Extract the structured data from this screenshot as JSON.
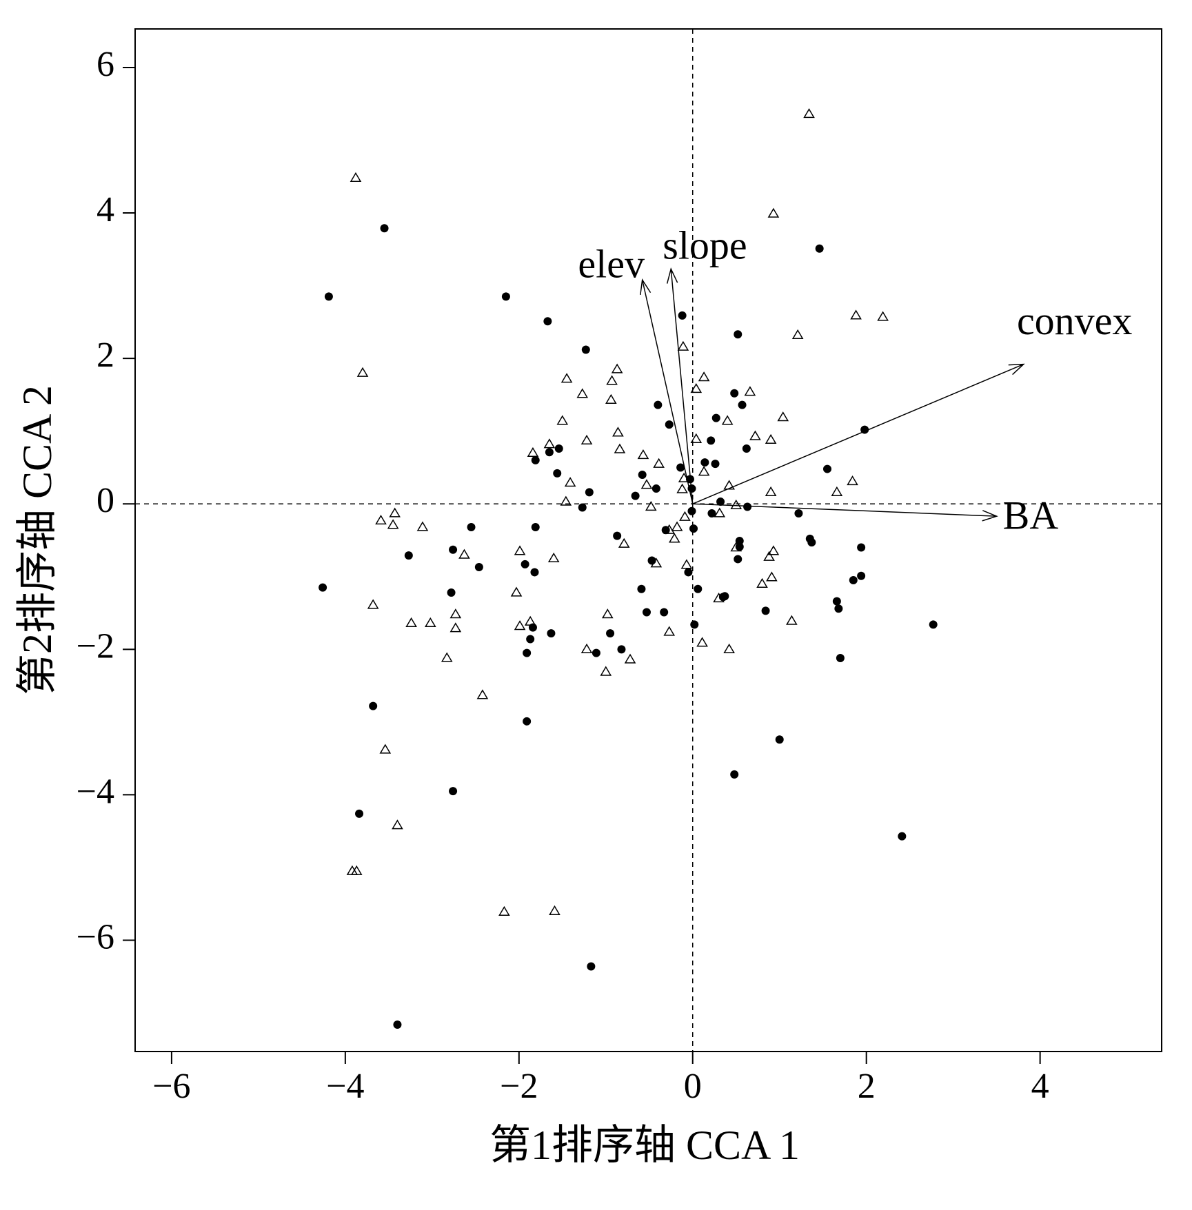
{
  "chart_data": {
    "type": "scatter",
    "xlabel": "第1排序轴 CCA 1",
    "ylabel": "第2排序轴 CCA 2",
    "xlim": [
      -6.42,
      5.4
    ],
    "ylim": [
      -7.53,
      6.53
    ],
    "xticks": [
      {
        "value": -6,
        "label": "−6"
      },
      {
        "value": -4,
        "label": "−4"
      },
      {
        "value": -2,
        "label": "−2"
      },
      0,
      2,
      4
    ],
    "yticks": [
      {
        "value": -6,
        "label": "−6"
      },
      {
        "value": -4,
        "label": "−4"
      },
      {
        "value": -2,
        "label": "−2"
      },
      0,
      2,
      4,
      6
    ],
    "series": [
      {
        "marker": "circle",
        "color": "#000000",
        "x": [
          -3.55,
          -4.19,
          -2.15,
          -1.67,
          -1.23,
          1.46,
          -0.12,
          0.52,
          0.48,
          0.57,
          -0.4,
          -0.27,
          0.27,
          0.21,
          0.62,
          1.98,
          -1.81,
          -1.65,
          -1.54,
          -1.56,
          -0.58,
          -0.14,
          0.14,
          0.26,
          -0.03,
          -0.01,
          -0.42,
          -1.19,
          -0.66,
          -1.27,
          0.32,
          0.22,
          -0.01,
          0.63,
          1.55,
          1.22,
          -2.55,
          -1.81,
          0.01,
          -0.31,
          -3.27,
          -2.76,
          -2.46,
          -1.93,
          -1.82,
          -0.87,
          -0.47,
          0.54,
          0.54,
          0.52,
          1.35,
          1.37,
          1.94,
          -0.05,
          -4.26,
          -2.78,
          -0.59,
          0.06,
          0.37,
          0.35,
          1.85,
          1.94,
          1.66,
          1.68,
          -0.53,
          -0.33,
          0.84,
          2.77,
          0.02,
          -1.84,
          -1.63,
          -1.87,
          -0.95,
          -0.82,
          -1.11,
          -1.91,
          1.7,
          -3.68,
          -1.91,
          1.0,
          -2.76,
          0.48,
          -3.84,
          2.41,
          -1.17,
          -3.4
        ],
        "y": [
          3.79,
          2.85,
          2.85,
          2.51,
          2.12,
          3.51,
          2.59,
          2.33,
          1.52,
          1.36,
          1.36,
          1.09,
          1.18,
          0.87,
          0.76,
          1.02,
          0.6,
          0.71,
          0.76,
          0.42,
          0.4,
          0.5,
          0.57,
          0.55,
          0.34,
          0.21,
          0.21,
          0.16,
          0.11,
          -0.05,
          0.03,
          -0.13,
          -0.1,
          -0.04,
          0.48,
          -0.13,
          -0.32,
          -0.32,
          -0.34,
          -0.36,
          -0.71,
          -0.63,
          -0.87,
          -0.83,
          -0.94,
          -0.44,
          -0.78,
          -0.51,
          -0.59,
          -0.76,
          -0.48,
          -0.53,
          -0.6,
          -0.94,
          -1.15,
          -1.22,
          -1.17,
          -1.17,
          -1.27,
          -1.28,
          -1.05,
          -0.99,
          -1.34,
          -1.44,
          -1.49,
          -1.49,
          -1.47,
          -1.66,
          -1.66,
          -1.7,
          -1.78,
          -1.86,
          -1.78,
          -2.0,
          -2.05,
          -2.05,
          -2.12,
          -2.78,
          -2.99,
          -3.24,
          -3.95,
          -3.72,
          -4.26,
          -4.57,
          -6.36,
          -7.16
        ]
      },
      {
        "marker": "triangle",
        "color": "#000000",
        "x": [
          1.34,
          -3.88,
          0.93,
          -3.8,
          1.88,
          2.19,
          1.21,
          -0.11,
          -0.87,
          -1.45,
          -0.93,
          0.13,
          0.04,
          0.66,
          -1.27,
          -0.94,
          1.04,
          -1.5,
          0.4,
          -0.86,
          -1.22,
          0.72,
          0.9,
          0.04,
          -1.65,
          -0.84,
          -1.84,
          -0.57,
          -0.39,
          0.13,
          -0.1,
          -1.41,
          -0.53,
          1.84,
          0.42,
          -0.12,
          0.9,
          1.66,
          -1.46,
          -0.48,
          0.5,
          -3.43,
          -3.59,
          -3.45,
          -3.11,
          -0.09,
          -0.18,
          -0.27,
          -0.21,
          0.31,
          -0.79,
          -2.63,
          -1.99,
          -1.6,
          0.5,
          0.93,
          0.88,
          -0.42,
          -0.07,
          0.91,
          0.8,
          -2.03,
          0.3,
          -3.68,
          -2.73,
          -0.98,
          -3.24,
          -3.02,
          1.14,
          -1.99,
          -1.87,
          -2.73,
          -0.27,
          0.11,
          -1.22,
          0.42,
          -0.72,
          -2.83,
          -1.0,
          -2.42,
          -3.54,
          -3.4,
          -3.92,
          -3.87,
          -2.17,
          -1.59
        ],
        "y": [
          5.36,
          4.48,
          3.99,
          1.8,
          2.59,
          2.57,
          2.32,
          2.16,
          1.85,
          1.72,
          1.69,
          1.74,
          1.58,
          1.54,
          1.51,
          1.43,
          1.19,
          1.14,
          1.14,
          0.98,
          0.87,
          0.93,
          0.88,
          0.89,
          0.82,
          0.75,
          0.7,
          0.67,
          0.55,
          0.44,
          0.35,
          0.29,
          0.26,
          0.31,
          0.25,
          0.2,
          0.16,
          0.16,
          0.03,
          -0.04,
          -0.02,
          -0.13,
          -0.23,
          -0.29,
          -0.32,
          -0.18,
          -0.32,
          -0.36,
          -0.48,
          -0.13,
          -0.55,
          -0.7,
          -0.65,
          -0.75,
          -0.6,
          -0.65,
          -0.73,
          -0.82,
          -0.84,
          -1.01,
          -1.1,
          -1.22,
          -1.3,
          -1.39,
          -1.52,
          -1.52,
          -1.64,
          -1.64,
          -1.61,
          -1.68,
          -1.62,
          -1.71,
          -1.76,
          -1.91,
          -2.0,
          -2.0,
          -2.14,
          -2.12,
          -2.31,
          -2.63,
          -3.38,
          -4.42,
          -5.05,
          -5.05,
          -5.61,
          -5.6
        ]
      }
    ],
    "arrows": [
      {
        "name": "convex",
        "x": 3.81,
        "y": 1.92
      },
      {
        "name": "BA",
        "x": 3.5,
        "y": -0.17
      },
      {
        "name": "elev",
        "x": -0.58,
        "y": 3.08
      },
      {
        "name": "slope",
        "x": -0.25,
        "y": 3.23
      }
    ]
  }
}
